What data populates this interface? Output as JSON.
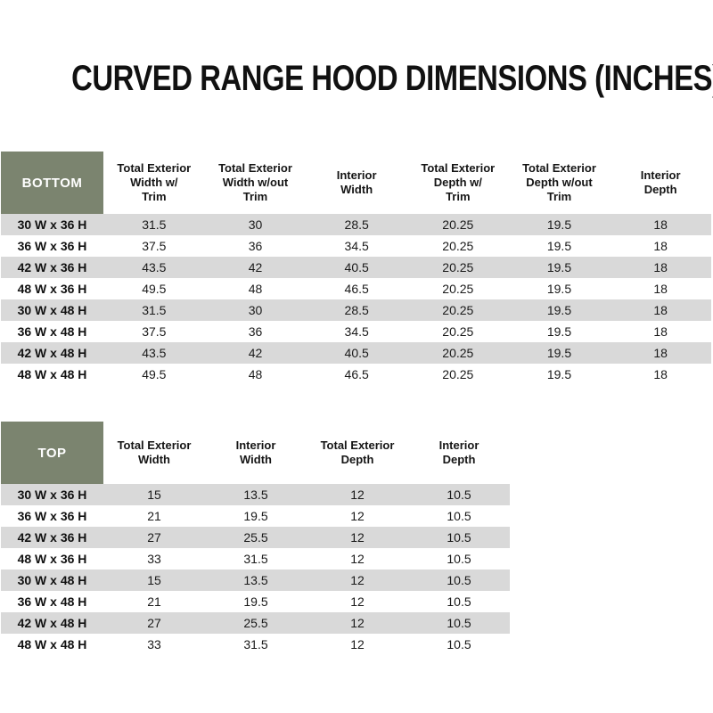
{
  "title": "CURVED RANGE HOOD DIMENSIONS (INCHES)",
  "colors": {
    "header_cell_bg": "#7b846f",
    "header_cell_text": "#ffffff",
    "row_stripe": "#d9d9d9",
    "row_alt": "#ffffff",
    "text": "#1d1d1d"
  },
  "bottom_table": {
    "corner_label": "BOTTOM",
    "columns": [
      {
        "lines": [
          "Total Exterior",
          "Width w/",
          "Trim"
        ]
      },
      {
        "lines": [
          "Total Exterior",
          "Width w/out",
          "Trim"
        ]
      },
      {
        "lines": [
          "Interior",
          "Width"
        ]
      },
      {
        "lines": [
          "Total Exterior",
          "Depth w/",
          "Trim"
        ]
      },
      {
        "lines": [
          "Total Exterior",
          "Depth w/out",
          "Trim"
        ]
      },
      {
        "lines": [
          "Interior",
          "Depth"
        ]
      }
    ],
    "rows": [
      {
        "label": "30 W x 36 H",
        "values": [
          "31.5",
          "30",
          "28.5",
          "20.25",
          "19.5",
          "18"
        ]
      },
      {
        "label": "36 W x 36 H",
        "values": [
          "37.5",
          "36",
          "34.5",
          "20.25",
          "19.5",
          "18"
        ]
      },
      {
        "label": "42 W x 36 H",
        "values": [
          "43.5",
          "42",
          "40.5",
          "20.25",
          "19.5",
          "18"
        ]
      },
      {
        "label": "48 W x 36 H",
        "values": [
          "49.5",
          "48",
          "46.5",
          "20.25",
          "19.5",
          "18"
        ]
      },
      {
        "label": "30 W x 48 H",
        "values": [
          "31.5",
          "30",
          "28.5",
          "20.25",
          "19.5",
          "18"
        ]
      },
      {
        "label": "36 W x 48 H",
        "values": [
          "37.5",
          "36",
          "34.5",
          "20.25",
          "19.5",
          "18"
        ]
      },
      {
        "label": "42 W x 48 H",
        "values": [
          "43.5",
          "42",
          "40.5",
          "20.25",
          "19.5",
          "18"
        ]
      },
      {
        "label": "48 W x 48 H",
        "values": [
          "49.5",
          "48",
          "46.5",
          "20.25",
          "19.5",
          "18"
        ]
      }
    ]
  },
  "top_table": {
    "corner_label": "TOP",
    "columns": [
      {
        "lines": [
          "Total Exterior",
          "Width"
        ]
      },
      {
        "lines": [
          "Interior",
          "Width"
        ]
      },
      {
        "lines": [
          "Total Exterior",
          "Depth"
        ]
      },
      {
        "lines": [
          "Interior",
          "Depth"
        ]
      }
    ],
    "rows": [
      {
        "label": "30 W x 36 H",
        "values": [
          "15",
          "13.5",
          "12",
          "10.5"
        ]
      },
      {
        "label": "36 W x 36 H",
        "values": [
          "21",
          "19.5",
          "12",
          "10.5"
        ]
      },
      {
        "label": "42 W x 36 H",
        "values": [
          "27",
          "25.5",
          "12",
          "10.5"
        ]
      },
      {
        "label": "48 W x 36 H",
        "values": [
          "33",
          "31.5",
          "12",
          "10.5"
        ]
      },
      {
        "label": "30 W x 48 H",
        "values": [
          "15",
          "13.5",
          "12",
          "10.5"
        ]
      },
      {
        "label": "36 W x 48 H",
        "values": [
          "21",
          "19.5",
          "12",
          "10.5"
        ]
      },
      {
        "label": "42 W x 48 H",
        "values": [
          "27",
          "25.5",
          "12",
          "10.5"
        ]
      },
      {
        "label": "48 W x 48 H",
        "values": [
          "33",
          "31.5",
          "12",
          "10.5"
        ]
      }
    ]
  }
}
